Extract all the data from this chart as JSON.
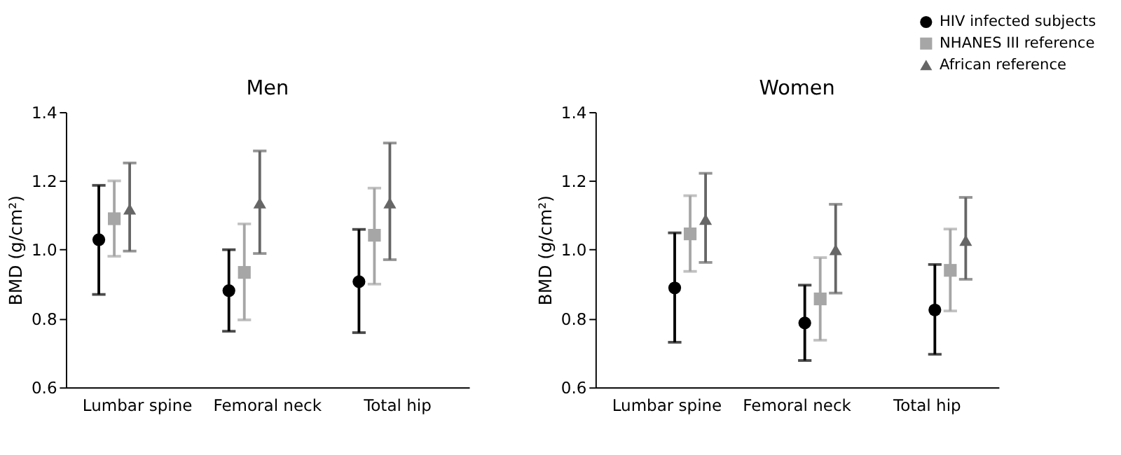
{
  "chart_data": [
    {
      "type": "scatter",
      "title": "Men",
      "ylabel": "BMD (g/cm²)",
      "categories": [
        "Lumbar spine",
        "Femoral neck",
        "Total hip"
      ],
      "ylim": [
        0.6,
        1.4
      ],
      "yticks": [
        0.6,
        0.8,
        {
          "value": 1.0,
          "label": "1.0"
        },
        1.2,
        1.4
      ],
      "grid": false,
      "series": [
        {
          "color": "#000000",
          "marker": "circle",
          "values": [
            1.029,
            0.881,
            0.907
          ],
          "errors": [
            [
              0.87,
              1.187
            ],
            [
              0.763,
              1.0
            ],
            [
              0.759,
              1.059
            ]
          ]
        },
        {
          "color": "#a6a6a6",
          "marker": "square",
          "values": [
            1.09,
            0.934,
            1.042
          ],
          "errors": [
            [
              0.981,
              1.2
            ],
            [
              0.796,
              1.075
            ],
            [
              0.9,
              1.179
            ]
          ]
        },
        {
          "color": "#666666",
          "marker": "triangle",
          "values": [
            1.118,
            1.136,
            1.136
          ],
          "errors": [
            [
              0.996,
              1.252
            ],
            [
              0.989,
              1.287
            ],
            [
              0.971,
              1.31
            ]
          ]
        }
      ]
    },
    {
      "type": "scatter",
      "title": "Women",
      "ylabel": "BMD (g/cm²)",
      "categories": [
        "Lumbar spine",
        "Femoral neck",
        "Total hip"
      ],
      "ylim": [
        0.6,
        1.4
      ],
      "yticks": [
        0.6,
        0.8,
        {
          "value": 1.0,
          "label": "1.0"
        },
        1.2,
        1.4
      ],
      "grid": false,
      "legend": "top right",
      "series": [
        {
          "name": "HIV infected subjects",
          "color": "#000000",
          "marker": "circle",
          "values": [
            0.889,
            0.787,
            0.825
          ],
          "errors": [
            [
              0.731,
              1.049
            ],
            [
              0.678,
              0.897
            ],
            [
              0.696,
              0.957
            ]
          ]
        },
        {
          "name": "NHANES III reference",
          "color": "#a6a6a6",
          "marker": "square",
          "values": [
            1.046,
            0.857,
            0.94
          ],
          "errors": [
            [
              0.937,
              1.157
            ],
            [
              0.737,
              0.977
            ],
            [
              0.822,
              1.06
            ]
          ]
        },
        {
          "name": "African reference",
          "color": "#666666",
          "marker": "triangle",
          "values": [
            1.088,
            1.0,
            1.027
          ],
          "errors": [
            [
              0.963,
              1.222
            ],
            [
              0.874,
              1.132
            ],
            [
              0.914,
              1.152
            ]
          ]
        }
      ]
    }
  ]
}
